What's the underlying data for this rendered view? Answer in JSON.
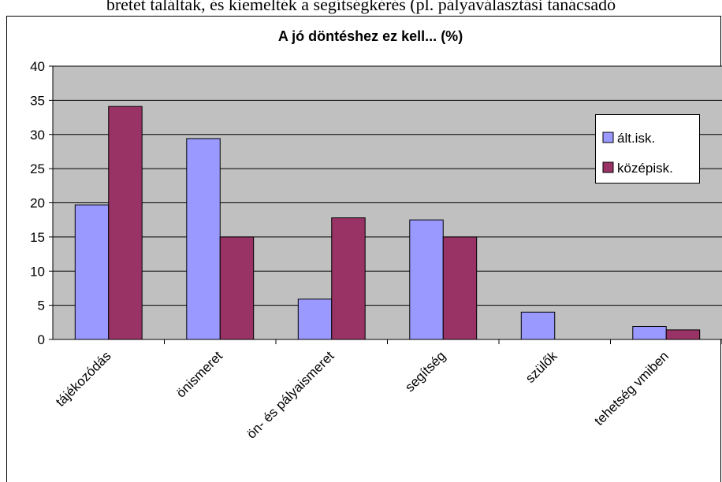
{
  "header_text": "bretet találtak, és kiemelték a segítségkérés (pl. pályaválasztási tanácsadó",
  "chart_data": {
    "type": "bar",
    "title": "A jó döntéshez ez kell... (%)",
    "categories": [
      "tájékozódás",
      "önismeret",
      "ön- és pályaismeret",
      "segítség",
      "szülők",
      "tehetség vmiben"
    ],
    "series": [
      {
        "name": "ált.isk.",
        "color": "#9999ff",
        "values": [
          19.7,
          29.4,
          5.9,
          17.5,
          4,
          1.9
        ]
      },
      {
        "name": "középisk.",
        "color": "#993366",
        "values": [
          34.1,
          15,
          17.8,
          15,
          0,
          1.4
        ]
      }
    ],
    "ylim": [
      0,
      40
    ],
    "yticks": [
      0,
      5,
      10,
      15,
      20,
      25,
      30,
      35,
      40
    ],
    "grid": true,
    "legend": "right"
  }
}
